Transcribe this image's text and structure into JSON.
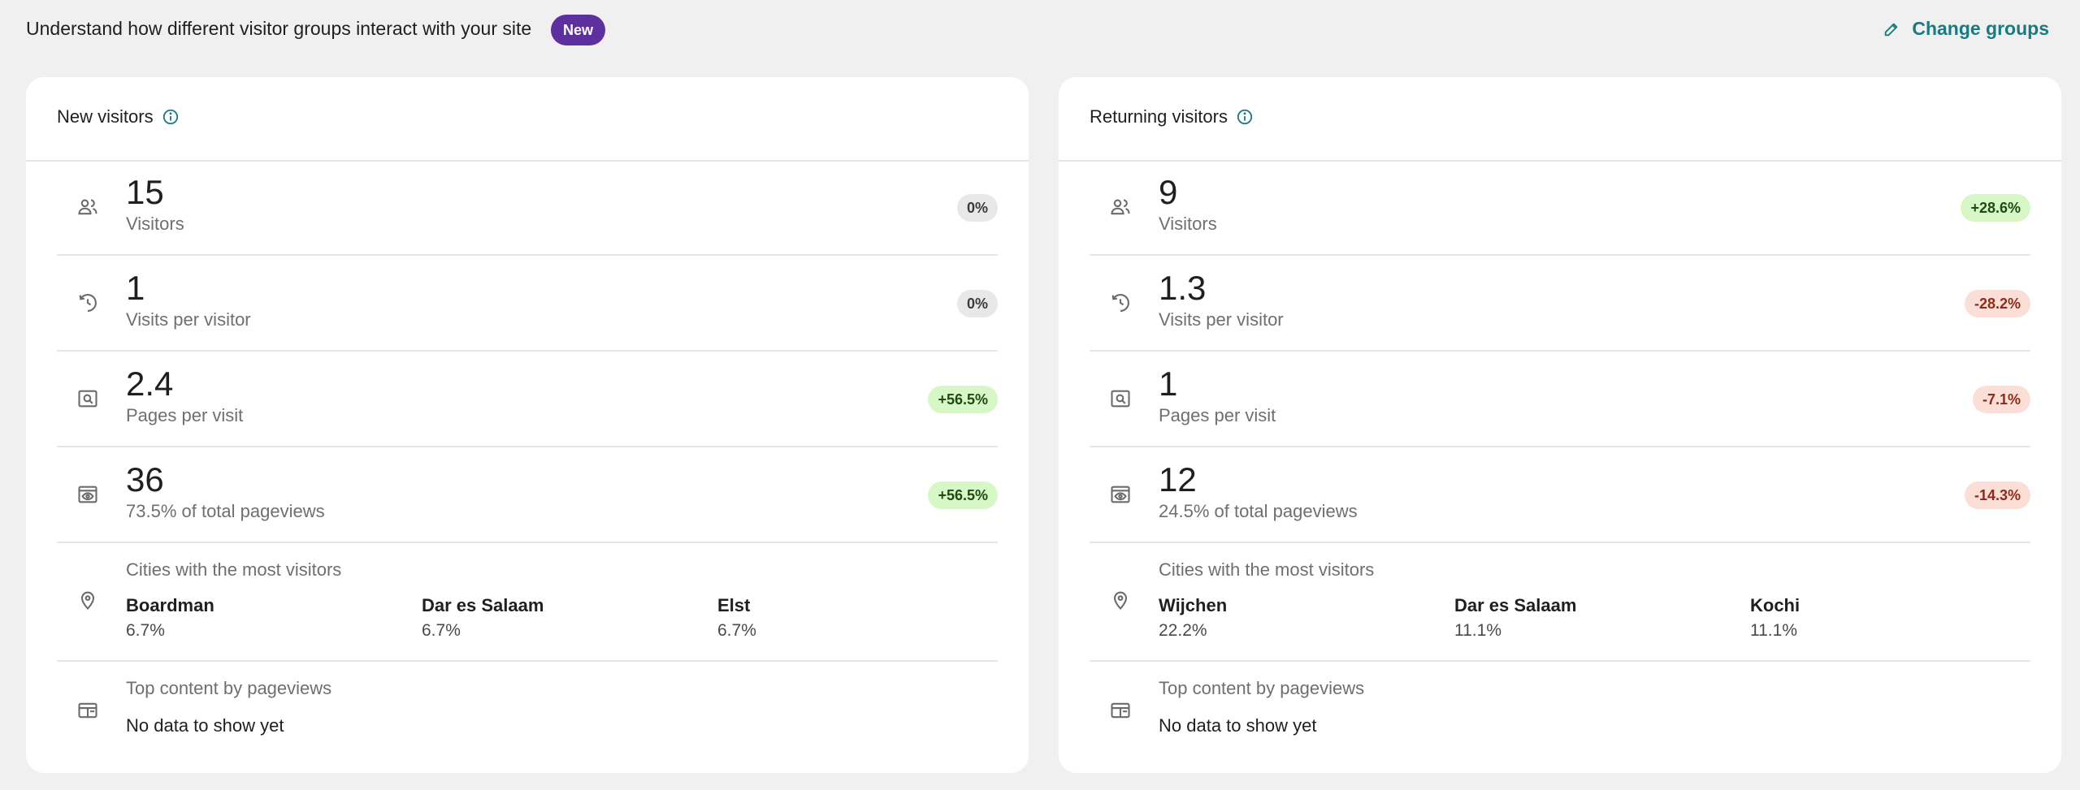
{
  "header": {
    "intro": "Understand how different visitor groups interact with your site",
    "badge": "New",
    "change_groups": "Change groups"
  },
  "cards": [
    {
      "title": "New visitors",
      "metrics": [
        {
          "value": "15",
          "label": "Visitors",
          "change": "0%",
          "trend": "neutral",
          "icon": "people-icon"
        },
        {
          "value": "1",
          "label": "Visits per visitor",
          "change": "0%",
          "trend": "neutral",
          "icon": "history-icon"
        },
        {
          "value": "2.4",
          "label": "Pages per visit",
          "change": "+56.5%",
          "trend": "up",
          "icon": "page-search-icon"
        },
        {
          "value": "36",
          "label": "73.5% of total pageviews",
          "change": "+56.5%",
          "trend": "up",
          "icon": "eye-window-icon"
        }
      ],
      "cities_heading": "Cities with the most visitors",
      "cities": [
        {
          "name": "Boardman",
          "pct": "6.7%"
        },
        {
          "name": "Dar es Salaam",
          "pct": "6.7%"
        },
        {
          "name": "Elst",
          "pct": "6.7%"
        }
      ],
      "content_heading": "Top content by pageviews",
      "content_empty": "No data to show yet"
    },
    {
      "title": "Returning visitors",
      "metrics": [
        {
          "value": "9",
          "label": "Visitors",
          "change": "+28.6%",
          "trend": "up",
          "icon": "people-icon"
        },
        {
          "value": "1.3",
          "label": "Visits per visitor",
          "change": "-28.2%",
          "trend": "down",
          "icon": "history-icon"
        },
        {
          "value": "1",
          "label": "Pages per visit",
          "change": "-7.1%",
          "trend": "down",
          "icon": "page-search-icon"
        },
        {
          "value": "12",
          "label": "24.5% of total pageviews",
          "change": "-14.3%",
          "trend": "down",
          "icon": "eye-window-icon"
        }
      ],
      "cities_heading": "Cities with the most visitors",
      "cities": [
        {
          "name": "Wijchen",
          "pct": "22.2%"
        },
        {
          "name": "Dar es Salaam",
          "pct": "11.1%"
        },
        {
          "name": "Kochi",
          "pct": "11.1%"
        }
      ],
      "content_heading": "Top content by pageviews",
      "content_empty": "No data to show yet"
    }
  ],
  "colors": {
    "accent": "#1a7a80",
    "badge": "#5e2f9e",
    "up_bg": "#d7f7c7",
    "down_bg": "#fbded6",
    "neutral_bg": "#e8e8e8"
  }
}
